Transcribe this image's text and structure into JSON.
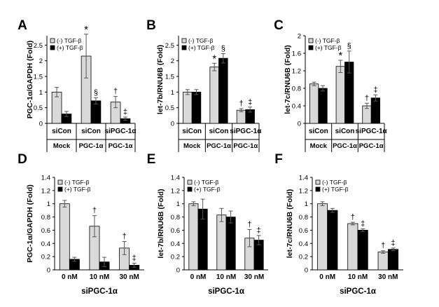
{
  "chart_data": [
    {
      "panel": "A",
      "type": "bar",
      "ylabel": "PGC-1α/GAPDH (Fold)",
      "ylim": [
        0,
        2.8
      ],
      "yticks": [
        0,
        0.5,
        1,
        1.5,
        2,
        2.5
      ],
      "ytick_labels": [
        "0",
        "0.5",
        "1",
        "1.5",
        "2",
        "2.5"
      ],
      "categories": [
        "siCon",
        "siCon",
        "siPGC-1α"
      ],
      "groups": [
        {
          "label": "Mock",
          "span": 1
        },
        {
          "label": "PGC-1α",
          "span": 1
        },
        {
          "label": "PGC-1α",
          "span": 1
        }
      ],
      "series": [
        {
          "name": "(-) TGF-β",
          "color": "#d9d9d9",
          "values": [
            1.0,
            2.15,
            0.68
          ],
          "errors": [
            0.15,
            0.7,
            0.18
          ]
        },
        {
          "name": "(+) TGF-β",
          "color": "#000000",
          "values": [
            0.3,
            0.72,
            0.15
          ],
          "errors": [
            0.08,
            0.1,
            0.05
          ]
        }
      ],
      "annotations": [
        {
          "series": 0,
          "index": 1,
          "text": "*"
        },
        {
          "series": 1,
          "index": 1,
          "text": "§"
        },
        {
          "series": 0,
          "index": 2,
          "text": "†"
        },
        {
          "series": 1,
          "index": 2,
          "text": "‡"
        }
      ],
      "legend": "top-left"
    },
    {
      "panel": "B",
      "type": "bar",
      "ylabel": "let-7b/RNU6B (Fold)",
      "ylim": [
        0,
        2.8
      ],
      "yticks": [
        0,
        0.5,
        1,
        1.5,
        2,
        2.5
      ],
      "ytick_labels": [
        "0",
        "0.5",
        "1",
        "1.5",
        "2",
        "2.5"
      ],
      "categories": [
        "siCon",
        "siCon",
        "siPGC-1α"
      ],
      "groups": [
        {
          "label": "Mock",
          "span": 1
        },
        {
          "label": "PGC-1α",
          "span": 1
        },
        {
          "label": "PGC-1α",
          "span": 1
        }
      ],
      "series": [
        {
          "name": "(-) TGF-β",
          "color": "#d9d9d9",
          "values": [
            1.0,
            1.8,
            0.42
          ],
          "errors": [
            0.08,
            0.12,
            0.05
          ]
        },
        {
          "name": "(+) TGF-β",
          "color": "#000000",
          "values": [
            1.0,
            2.08,
            0.44
          ],
          "errors": [
            0.08,
            0.15,
            0.08
          ]
        }
      ],
      "annotations": [
        {
          "series": 0,
          "index": 1,
          "text": "*"
        },
        {
          "series": 1,
          "index": 1,
          "text": "§"
        },
        {
          "series": 0,
          "index": 2,
          "text": "†"
        },
        {
          "series": 1,
          "index": 2,
          "text": "‡"
        }
      ],
      "legend": "top-left"
    },
    {
      "panel": "C",
      "type": "bar",
      "ylabel": "let-7c/RNU6B (Fold)",
      "ylim": [
        0,
        2.0
      ],
      "yticks": [
        0,
        0.4,
        0.8,
        1.2,
        1.6,
        2.0
      ],
      "ytick_labels": [
        "0",
        "0.4",
        "0.8",
        "1.2",
        "1.6",
        "2"
      ],
      "categories": [
        "siCon",
        "siCon",
        "siPGC-1α"
      ],
      "groups": [
        {
          "label": "Mock",
          "span": 1
        },
        {
          "label": "PGC-1α",
          "span": 1
        },
        {
          "label": "PGC-1α",
          "span": 1
        }
      ],
      "series": [
        {
          "name": "(-) TGF-β",
          "color": "#d9d9d9",
          "values": [
            0.9,
            1.3,
            0.4
          ],
          "errors": [
            0.04,
            0.14,
            0.06
          ]
        },
        {
          "name": "(+) TGF-β",
          "color": "#000000",
          "values": [
            0.8,
            1.4,
            0.58
          ],
          "errors": [
            0.06,
            0.25,
            0.07
          ]
        }
      ],
      "annotations": [
        {
          "series": 0,
          "index": 1,
          "text": "*"
        },
        {
          "series": 1,
          "index": 1,
          "text": "§"
        },
        {
          "series": 0,
          "index": 2,
          "text": "†"
        },
        {
          "series": 1,
          "index": 2,
          "text": "‡"
        }
      ],
      "legend": "top-left"
    },
    {
      "panel": "D",
      "type": "bar",
      "ylabel": "PGC-1α/GAPDH (Fold)",
      "xlabel": "siPGC-1α",
      "ylim": [
        0,
        1.4
      ],
      "yticks": [
        0,
        0.2,
        0.4,
        0.6,
        0.8,
        1.0,
        1.2,
        1.4
      ],
      "ytick_labels": [
        "0",
        "0.2",
        "0.4",
        "0.6",
        "0.8",
        "1",
        "1.2",
        "1.4"
      ],
      "categories": [
        "0 nM",
        "10 nM",
        "30 nM"
      ],
      "series": [
        {
          "name": "(-) TGF-β",
          "color": "#d9d9d9",
          "values": [
            1.0,
            0.66,
            0.33
          ],
          "errors": [
            0.05,
            0.16,
            0.1
          ]
        },
        {
          "name": "(+) TGF-β",
          "color": "#000000",
          "values": [
            0.16,
            0.12,
            0.07
          ],
          "errors": [
            0.03,
            0.07,
            0.03
          ]
        }
      ],
      "annotations": [
        {
          "series": 0,
          "index": 1,
          "text": "†"
        },
        {
          "series": 0,
          "index": 2,
          "text": "†"
        },
        {
          "series": 1,
          "index": 2,
          "text": "‡"
        }
      ],
      "legend": "top-left"
    },
    {
      "panel": "E",
      "type": "bar",
      "ylabel": "let-7b/RNU6B (Fold)",
      "xlabel": "siPGC-1α",
      "ylim": [
        0,
        1.4
      ],
      "yticks": [
        0,
        0.2,
        0.4,
        0.6,
        0.8,
        1.0,
        1.2,
        1.4
      ],
      "ytick_labels": [
        "0",
        "0.2",
        "0.4",
        "0.6",
        "0.8",
        "1",
        "1.2",
        "1.4"
      ],
      "categories": [
        "0 nM",
        "10 nM",
        "30 nM"
      ],
      "series": [
        {
          "name": "(-) TGF-β",
          "color": "#d9d9d9",
          "values": [
            1.0,
            0.83,
            0.48
          ],
          "errors": [
            0.03,
            0.1,
            0.13
          ]
        },
        {
          "name": "(+) TGF-β",
          "color": "#000000",
          "values": [
            0.92,
            0.8,
            0.45
          ],
          "errors": [
            0.15,
            0.09,
            0.07
          ]
        }
      ],
      "annotations": [
        {
          "series": 0,
          "index": 2,
          "text": "†"
        },
        {
          "series": 1,
          "index": 2,
          "text": "‡"
        }
      ],
      "legend": "top-left"
    },
    {
      "panel": "F",
      "type": "bar",
      "ylabel": "let-7c/RNU6B (Fold)",
      "xlabel": "siPGC-1α",
      "ylim": [
        0,
        1.4
      ],
      "yticks": [
        0,
        0.2,
        0.4,
        0.6,
        0.8,
        1.0,
        1.2,
        1.4
      ],
      "ytick_labels": [
        "0",
        "0.2",
        "0.4",
        "0.6",
        "0.8",
        "1",
        "1.2",
        "1.4"
      ],
      "categories": [
        "0 nM",
        "10 nM",
        "30 nM"
      ],
      "series": [
        {
          "name": "(-) TGF-β",
          "color": "#d9d9d9",
          "values": [
            1.0,
            0.7,
            0.27
          ],
          "errors": [
            0.03,
            0.02,
            0.02
          ]
        },
        {
          "name": "(+) TGF-β",
          "color": "#000000",
          "values": [
            0.9,
            0.6,
            0.31
          ],
          "errors": [
            0.03,
            0.02,
            0.02
          ]
        }
      ],
      "annotations": [
        {
          "series": 0,
          "index": 1,
          "text": "†"
        },
        {
          "series": 1,
          "index": 1,
          "text": "‡"
        },
        {
          "series": 0,
          "index": 2,
          "text": "†"
        },
        {
          "series": 1,
          "index": 2,
          "text": "‡"
        }
      ],
      "legend": "top-left"
    }
  ]
}
